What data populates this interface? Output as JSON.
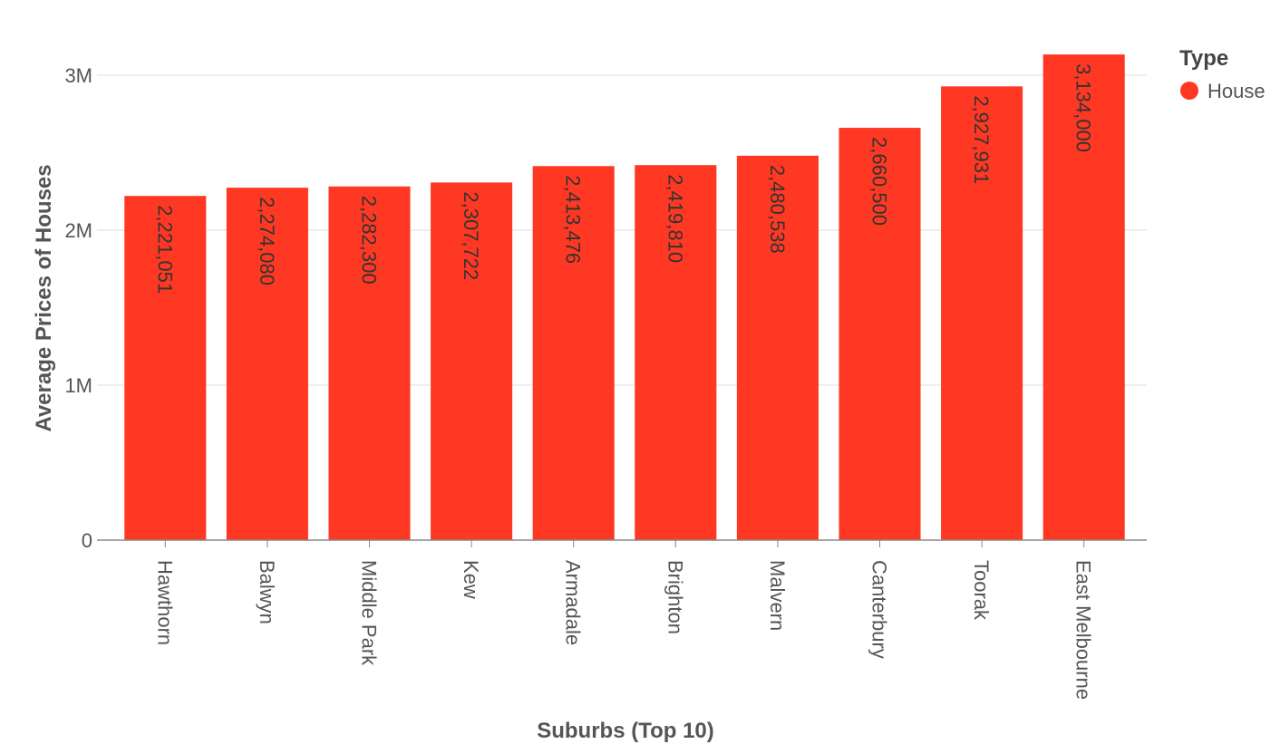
{
  "chart_data": {
    "type": "bar",
    "categories": [
      "Hawthorn",
      "Balwyn",
      "Middle Park",
      "Kew",
      "Armadale",
      "Brighton",
      "Malvern",
      "Canterbury",
      "Toorak",
      "East Melbourne"
    ],
    "series": [
      {
        "name": "House",
        "values": [
          2221051,
          2274080,
          2282300,
          2307722,
          2413476,
          2419810,
          2480538,
          2660500,
          2927931,
          3134000
        ],
        "data_labels": [
          "2,221,051",
          "2,274,080",
          "2,282,300",
          "2,307,722",
          "2,413,476",
          "2,419,810",
          "2,480,538",
          "2,660,500",
          "2,927,931",
          "3,134,000"
        ],
        "color": "#ff3823"
      }
    ],
    "xlabel": "Suburbs (Top 10)",
    "ylabel": "Average Prices of Houses",
    "ylim": [
      0,
      3200000
    ],
    "yticks": [
      0,
      1000000,
      2000000,
      3000000
    ],
    "ytick_labels": [
      "0",
      "1M",
      "2M",
      "3M"
    ],
    "grid": true,
    "legend": {
      "title": "Type",
      "placement": "top-right",
      "entries": [
        "House"
      ]
    }
  }
}
